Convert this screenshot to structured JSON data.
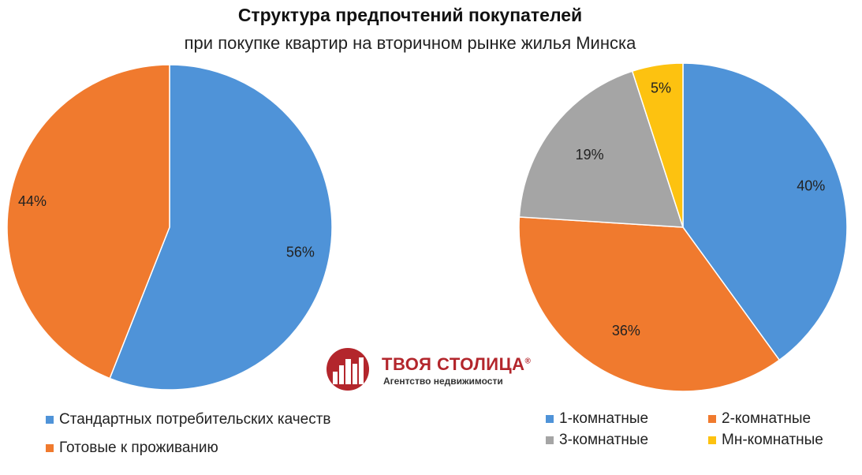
{
  "chart_data": [
    {
      "type": "pie",
      "title": "Структура предпочтений покупателей",
      "subtitle": "при покупке квартир на вторичном рынке жилья Минска",
      "slices": [
        {
          "name": "Стандартных потребительских качеств",
          "value": 56,
          "label": "56%",
          "color": "#4f93d8"
        },
        {
          "name": "Готовые к проживанию",
          "value": 44,
          "label": "44%",
          "color": "#f07a2e"
        }
      ],
      "legend_position": "bottom-left"
    },
    {
      "type": "pie",
      "slices": [
        {
          "name": "1-комнатные",
          "value": 40,
          "label": "40%",
          "color": "#4f93d8"
        },
        {
          "name": "2-комнатные",
          "value": 36,
          "label": "36%",
          "color": "#f07a2e"
        },
        {
          "name": "3-комнатные",
          "value": 19,
          "label": "19%",
          "color": "#a5a5a5"
        },
        {
          "name": "Мн-комнатные",
          "value": 5,
          "label": "5%",
          "color": "#fdc210"
        }
      ],
      "legend_position": "bottom-right"
    }
  ],
  "logo": {
    "name": "ТВОЯ СТОЛИЦА",
    "registered": "®",
    "tagline": "Агентство недвижимости",
    "icon": "building-logo-icon",
    "color": "#b3262c"
  }
}
